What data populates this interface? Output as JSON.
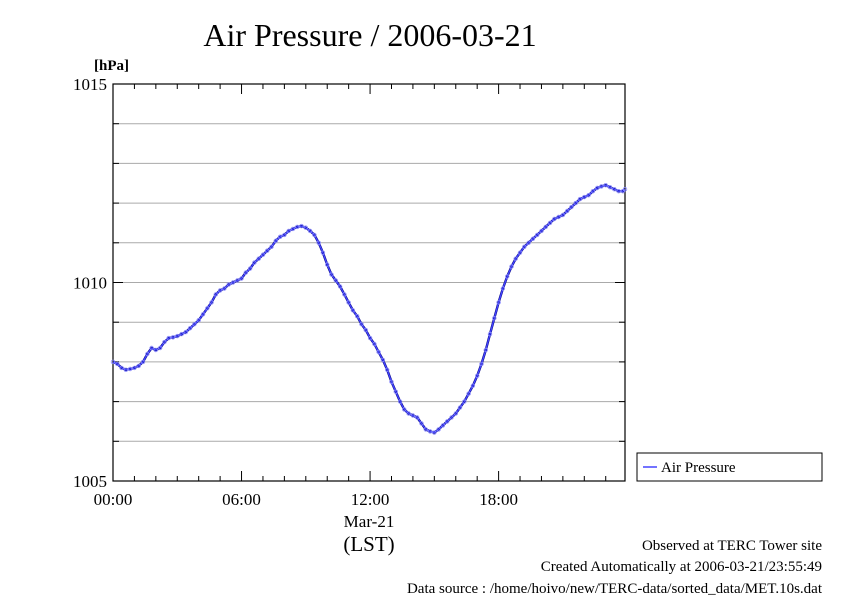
{
  "chart_data": {
    "type": "line",
    "title": "Air Pressure / 2006-03-21",
    "ylabel": "[hPa]",
    "ylim": [
      1005,
      1015
    ],
    "xlim": [
      0,
      23.9
    ],
    "y_ticks": [
      1005,
      1010,
      1015
    ],
    "y_tick_labels": [
      "1005",
      "1010",
      "1015"
    ],
    "y_grid_step": 1,
    "x_ticks": [
      0,
      6,
      12,
      18
    ],
    "x_tick_labels": [
      "00:00",
      "06:00",
      "12:00",
      "18:00"
    ],
    "x_date_label": "Mar-21",
    "x_unit_label": "(LST)",
    "grid": true,
    "legend_position": "right",
    "series": [
      {
        "name": "Air Pressure",
        "color": "#4444ff",
        "marker": "small-circle",
        "x": [
          0.0,
          0.2,
          0.4,
          0.6,
          0.8,
          1.0,
          1.2,
          1.4,
          1.6,
          1.8,
          2.0,
          2.2,
          2.4,
          2.6,
          2.8,
          3.0,
          3.2,
          3.4,
          3.6,
          3.8,
          4.0,
          4.2,
          4.4,
          4.6,
          4.8,
          5.0,
          5.2,
          5.4,
          5.6,
          5.8,
          6.0,
          6.2,
          6.4,
          6.6,
          6.8,
          7.0,
          7.2,
          7.4,
          7.6,
          7.8,
          8.0,
          8.2,
          8.4,
          8.6,
          8.8,
          9.0,
          9.2,
          9.4,
          9.6,
          9.8,
          10.0,
          10.2,
          10.4,
          10.6,
          10.8,
          11.0,
          11.2,
          11.4,
          11.6,
          11.8,
          12.0,
          12.2,
          12.4,
          12.6,
          12.8,
          13.0,
          13.2,
          13.4,
          13.6,
          13.8,
          14.0,
          14.2,
          14.4,
          14.6,
          14.8,
          15.0,
          15.2,
          15.4,
          15.6,
          15.8,
          16.0,
          16.2,
          16.4,
          16.6,
          16.8,
          17.0,
          17.2,
          17.4,
          17.6,
          17.8,
          18.0,
          18.2,
          18.4,
          18.6,
          18.8,
          19.0,
          19.2,
          19.4,
          19.6,
          19.8,
          20.0,
          20.2,
          20.4,
          20.6,
          20.8,
          21.0,
          21.2,
          21.4,
          21.6,
          21.8,
          22.0,
          22.2,
          22.4,
          22.6,
          22.8,
          23.0,
          23.2,
          23.4,
          23.6,
          23.8,
          23.9
        ],
        "y": [
          1008.0,
          1007.95,
          1007.85,
          1007.8,
          1007.82,
          1007.85,
          1007.9,
          1008.0,
          1008.2,
          1008.35,
          1008.3,
          1008.35,
          1008.5,
          1008.6,
          1008.62,
          1008.65,
          1008.7,
          1008.75,
          1008.85,
          1008.95,
          1009.05,
          1009.2,
          1009.35,
          1009.5,
          1009.7,
          1009.8,
          1009.85,
          1009.95,
          1010.0,
          1010.05,
          1010.1,
          1010.25,
          1010.35,
          1010.5,
          1010.6,
          1010.7,
          1010.8,
          1010.9,
          1011.05,
          1011.15,
          1011.2,
          1011.3,
          1011.35,
          1011.4,
          1011.42,
          1011.38,
          1011.3,
          1011.2,
          1011.0,
          1010.75,
          1010.45,
          1010.2,
          1010.05,
          1009.9,
          1009.7,
          1009.5,
          1009.3,
          1009.15,
          1008.95,
          1008.8,
          1008.6,
          1008.45,
          1008.25,
          1008.05,
          1007.8,
          1007.5,
          1007.25,
          1007.0,
          1006.8,
          1006.7,
          1006.65,
          1006.6,
          1006.45,
          1006.3,
          1006.25,
          1006.22,
          1006.3,
          1006.4,
          1006.5,
          1006.6,
          1006.7,
          1006.85,
          1007.0,
          1007.2,
          1007.4,
          1007.65,
          1007.95,
          1008.3,
          1008.7,
          1009.1,
          1009.5,
          1009.85,
          1010.15,
          1010.4,
          1010.6,
          1010.75,
          1010.9,
          1011.0,
          1011.1,
          1011.2,
          1011.3,
          1011.4,
          1011.5,
          1011.6,
          1011.65,
          1011.7,
          1011.8,
          1011.9,
          1012.0,
          1012.1,
          1012.15,
          1012.2,
          1012.3,
          1012.38,
          1012.42,
          1012.45,
          1012.4,
          1012.35,
          1012.3,
          1012.3,
          1012.35
        ]
      }
    ]
  },
  "footer": {
    "line1": "Observed at TERC Tower site",
    "line2": "Created Automatically at 2006-03-21/23:55:49",
    "line3": "Data source : /home/hoivo/new/TERC-data/sorted_data/MET.10s.dat"
  }
}
